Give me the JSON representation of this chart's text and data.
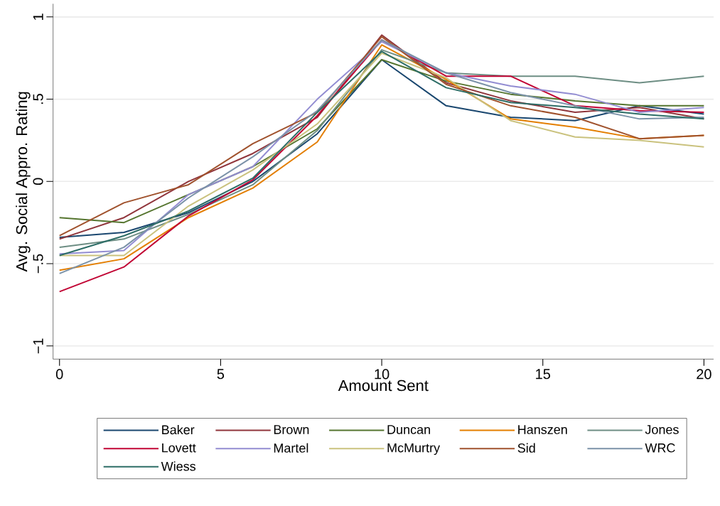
{
  "chart_data": {
    "type": "line",
    "xlabel": "Amount Sent",
    "ylabel": "Avg. Social Appro. Rating",
    "x": [
      0,
      2,
      4,
      6,
      8,
      10,
      12,
      14,
      16,
      18,
      20
    ],
    "xlim": [
      -0.2,
      20.3
    ],
    "ylim": [
      -1.08,
      1.08
    ],
    "xticks": [
      0,
      5,
      10,
      15,
      20
    ],
    "yticks": [
      {
        "value": -1,
        "label": "−1"
      },
      {
        "value": -0.5,
        "label": "−.5"
      },
      {
        "value": 0,
        "label": "0"
      },
      {
        "value": 0.5,
        "label": ".5"
      },
      {
        "value": 1,
        "label": "1"
      }
    ],
    "grid": "y",
    "legend": "bottom",
    "series": [
      {
        "name": "Baker",
        "color": "#1a476f",
        "values": [
          -0.34,
          -0.31,
          -0.19,
          0.0,
          0.29,
          0.74,
          0.46,
          0.39,
          0.37,
          0.46,
          0.41
        ]
      },
      {
        "name": "Brown",
        "color": "#90353b",
        "values": [
          -0.35,
          -0.22,
          0.0,
          0.17,
          0.39,
          0.89,
          0.6,
          0.49,
          0.42,
          0.45,
          0.38
        ]
      },
      {
        "name": "Duncan",
        "color": "#55752f",
        "values": [
          -0.22,
          -0.25,
          -0.08,
          0.09,
          0.32,
          0.74,
          0.61,
          0.53,
          0.49,
          0.46,
          0.46
        ]
      },
      {
        "name": "Hanszen",
        "color": "#e37e00",
        "values": [
          -0.54,
          -0.47,
          -0.22,
          -0.04,
          0.24,
          0.83,
          0.62,
          0.38,
          0.33,
          0.26,
          0.28
        ]
      },
      {
        "name": "Jones",
        "color": "#6e8e84",
        "values": [
          -0.4,
          -0.35,
          -0.2,
          -0.02,
          0.31,
          0.8,
          0.66,
          0.64,
          0.64,
          0.6,
          0.64
        ]
      },
      {
        "name": "Lovett",
        "color": "#c10534",
        "values": [
          -0.67,
          -0.52,
          -0.21,
          0.01,
          0.4,
          0.86,
          0.64,
          0.64,
          0.46,
          0.43,
          0.42
        ]
      },
      {
        "name": "Martel",
        "color": "#938dd2",
        "values": [
          -0.44,
          -0.42,
          -0.08,
          0.09,
          0.5,
          0.85,
          0.66,
          0.58,
          0.53,
          0.42,
          0.45
        ]
      },
      {
        "name": "McMurtry",
        "color": "#cac27e",
        "values": [
          -0.45,
          -0.45,
          -0.15,
          0.07,
          0.35,
          0.78,
          0.63,
          0.37,
          0.27,
          0.25,
          0.21
        ]
      },
      {
        "name": "Sid",
        "color": "#a0522d",
        "values": [
          -0.33,
          -0.13,
          -0.02,
          0.23,
          0.42,
          0.88,
          0.59,
          0.46,
          0.39,
          0.26,
          0.28
        ]
      },
      {
        "name": "WRC",
        "color": "#7b92a8",
        "values": [
          -0.56,
          -0.4,
          -0.1,
          0.15,
          0.43,
          0.86,
          0.66,
          0.54,
          0.46,
          0.38,
          0.39
        ]
      },
      {
        "name": "Wiess",
        "color": "#2d6d66",
        "values": [
          -0.45,
          -0.33,
          -0.18,
          0.02,
          0.42,
          0.79,
          0.57,
          0.48,
          0.45,
          0.41,
          0.38
        ]
      }
    ]
  }
}
